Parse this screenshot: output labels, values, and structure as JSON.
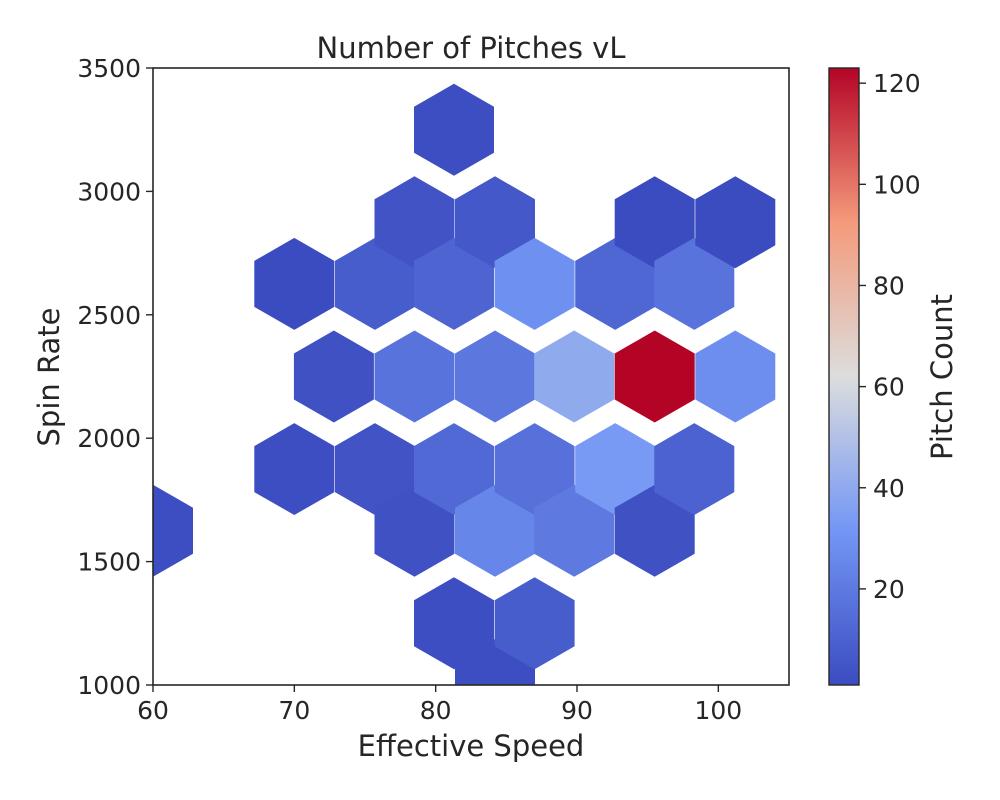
{
  "chart_data": {
    "type": "heatmap",
    "subtype": "hexbin",
    "title": "Number of Pitches vL",
    "xlabel": "Effective Speed",
    "ylabel": "Spin Rate",
    "xlim": [
      60,
      105
    ],
    "ylim": [
      1000,
      3500
    ],
    "xticks": [
      60,
      70,
      80,
      90,
      100
    ],
    "yticks": [
      1000,
      1500,
      2000,
      2500,
      3000,
      3500
    ],
    "grid": false,
    "colorbar": {
      "label": "Pitch Count",
      "colormap": "coolwarm",
      "range": [
        1,
        123
      ],
      "ticks": [
        20,
        40,
        60,
        80,
        100,
        120
      ]
    },
    "hexagons": [
      {
        "x": 60.0,
        "y": 1625,
        "count": 2
      },
      {
        "x": 70.0,
        "y": 2625,
        "count": 1
      },
      {
        "x": 70.0,
        "y": 1875,
        "count": 2
      },
      {
        "x": 72.8,
        "y": 2250,
        "count": 3
      },
      {
        "x": 75.7,
        "y": 2625,
        "count": 8
      },
      {
        "x": 75.7,
        "y": 1875,
        "count": 4
      },
      {
        "x": 78.5,
        "y": 2875,
        "count": 4
      },
      {
        "x": 78.5,
        "y": 2250,
        "count": 17
      },
      {
        "x": 78.5,
        "y": 1625,
        "count": 3
      },
      {
        "x": 81.3,
        "y": 3250,
        "count": 2
      },
      {
        "x": 81.3,
        "y": 2625,
        "count": 11
      },
      {
        "x": 81.3,
        "y": 1875,
        "count": 13
      },
      {
        "x": 81.3,
        "y": 1250,
        "count": 2
      },
      {
        "x": 84.2,
        "y": 2875,
        "count": 6
      },
      {
        "x": 84.2,
        "y": 2250,
        "count": 19
      },
      {
        "x": 84.2,
        "y": 1625,
        "count": 25
      },
      {
        "x": 84.2,
        "y": 1000,
        "count": 2
      },
      {
        "x": 87.0,
        "y": 2625,
        "count": 29
      },
      {
        "x": 87.0,
        "y": 1875,
        "count": 16
      },
      {
        "x": 87.0,
        "y": 1250,
        "count": 8
      },
      {
        "x": 89.8,
        "y": 2250,
        "count": 40
      },
      {
        "x": 89.8,
        "y": 1625,
        "count": 20
      },
      {
        "x": 92.7,
        "y": 2625,
        "count": 12
      },
      {
        "x": 92.7,
        "y": 1875,
        "count": 33
      },
      {
        "x": 95.5,
        "y": 2875,
        "count": 1
      },
      {
        "x": 95.5,
        "y": 2250,
        "count": 123
      },
      {
        "x": 95.5,
        "y": 1625,
        "count": 3
      },
      {
        "x": 98.3,
        "y": 2625,
        "count": 17
      },
      {
        "x": 98.3,
        "y": 1875,
        "count": 10
      },
      {
        "x": 101.2,
        "y": 2875,
        "count": 1
      },
      {
        "x": 101.2,
        "y": 2250,
        "count": 28
      }
    ]
  }
}
